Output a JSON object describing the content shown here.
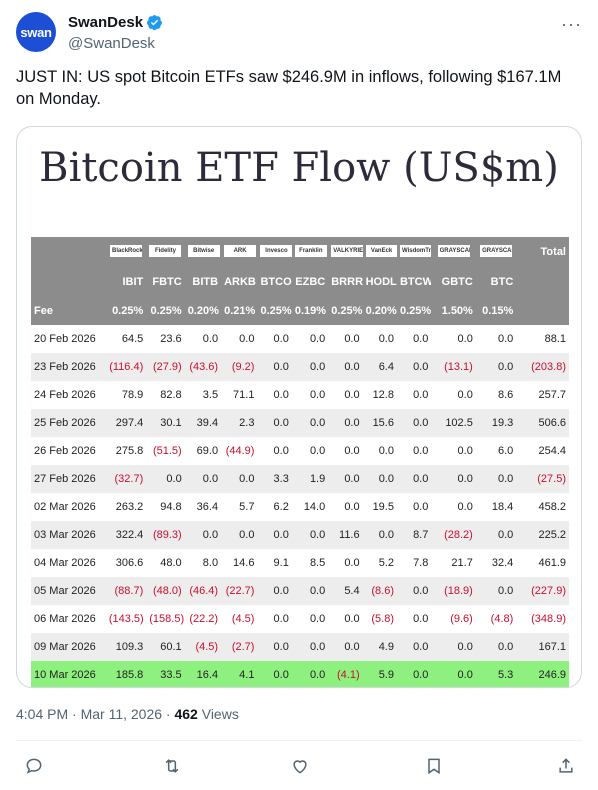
{
  "author": {
    "avatar_text": "swan",
    "display_name": "SwanDesk",
    "handle": "@SwanDesk",
    "verified_color": "#1d9bf0"
  },
  "more_label": "···",
  "tweet": {
    "text": "JUST IN: US spot Bitcoin ETFs saw $246.9M in inflows, following $167.1M on Monday."
  },
  "chart_data": {
    "type": "table",
    "title": "Bitcoin ETF Flow (US$m)",
    "issuers": [
      "BlackRock",
      "Fidelity",
      "Bitwise",
      "ARK",
      "Invesco",
      "Franklin",
      "VALKYRIE",
      "VanEck",
      "WisdomTree",
      "GRAYSCALE",
      "GRAYSCALE",
      "Total"
    ],
    "columns": [
      "IBIT",
      "FBTC",
      "BITB",
      "ARKB",
      "BTCO",
      "EZBC",
      "BRRR",
      "HODL",
      "BTCW",
      "GBTC",
      "BTC"
    ],
    "total_label": "Total",
    "fee_label": "Fee",
    "fees": [
      "0.25%",
      "0.25%",
      "0.20%",
      "0.21%",
      "0.25%",
      "0.19%",
      "0.25%",
      "0.20%",
      "0.25%",
      "1.50%",
      "0.15%",
      ""
    ],
    "rows": [
      {
        "date": "20 Feb 2026",
        "values": [
          "64.5",
          "23.6",
          "0.0",
          "0.0",
          "0.0",
          "0.0",
          "0.0",
          "0.0",
          "0.0",
          "0.0",
          "0.0",
          "88.1"
        ]
      },
      {
        "date": "23 Feb 2026",
        "values": [
          "(116.4)",
          "(27.9)",
          "(43.6)",
          "(9.2)",
          "0.0",
          "0.0",
          "0.0",
          "6.4",
          "0.0",
          "(13.1)",
          "0.0",
          "(203.8)"
        ]
      },
      {
        "date": "24 Feb 2026",
        "values": [
          "78.9",
          "82.8",
          "3.5",
          "71.1",
          "0.0",
          "0.0",
          "0.0",
          "12.8",
          "0.0",
          "0.0",
          "8.6",
          "257.7"
        ]
      },
      {
        "date": "25 Feb 2026",
        "values": [
          "297.4",
          "30.1",
          "39.4",
          "2.3",
          "0.0",
          "0.0",
          "0.0",
          "15.6",
          "0.0",
          "102.5",
          "19.3",
          "506.6"
        ]
      },
      {
        "date": "26 Feb 2026",
        "values": [
          "275.8",
          "(51.5)",
          "69.0",
          "(44.9)",
          "0.0",
          "0.0",
          "0.0",
          "0.0",
          "0.0",
          "0.0",
          "6.0",
          "254.4"
        ]
      },
      {
        "date": "27 Feb 2026",
        "values": [
          "(32.7)",
          "0.0",
          "0.0",
          "0.0",
          "3.3",
          "1.9",
          "0.0",
          "0.0",
          "0.0",
          "0.0",
          "0.0",
          "(27.5)"
        ]
      },
      {
        "date": "02 Mar 2026",
        "values": [
          "263.2",
          "94.8",
          "36.4",
          "5.7",
          "6.2",
          "14.0",
          "0.0",
          "19.5",
          "0.0",
          "0.0",
          "18.4",
          "458.2"
        ]
      },
      {
        "date": "03 Mar 2026",
        "values": [
          "322.4",
          "(89.3)",
          "0.0",
          "0.0",
          "0.0",
          "0.0",
          "11.6",
          "0.0",
          "8.7",
          "(28.2)",
          "0.0",
          "225.2"
        ]
      },
      {
        "date": "04 Mar 2026",
        "values": [
          "306.6",
          "48.0",
          "8.0",
          "14.6",
          "9.1",
          "8.5",
          "0.0",
          "5.2",
          "7.8",
          "21.7",
          "32.4",
          "461.9"
        ]
      },
      {
        "date": "05 Mar 2026",
        "values": [
          "(88.7)",
          "(48.0)",
          "(46.4)",
          "(22.7)",
          "0.0",
          "0.0",
          "5.4",
          "(8.6)",
          "0.0",
          "(18.9)",
          "0.0",
          "(227.9)"
        ]
      },
      {
        "date": "06 Mar 2026",
        "values": [
          "(143.5)",
          "(158.5)",
          "(22.2)",
          "(4.5)",
          "0.0",
          "0.0",
          "0.0",
          "(5.8)",
          "0.0",
          "(9.6)",
          "(4.8)",
          "(348.9)"
        ]
      },
      {
        "date": "09 Mar 2026",
        "values": [
          "109.3",
          "60.1",
          "(4.5)",
          "(2.7)",
          "0.0",
          "0.0",
          "0.0",
          "4.9",
          "0.0",
          "0.0",
          "0.0",
          "167.1"
        ]
      },
      {
        "date": "10 Mar 2026",
        "values": [
          "185.8",
          "33.5",
          "16.4",
          "4.1",
          "0.0",
          "0.0",
          "(4.1)",
          "5.9",
          "0.0",
          "0.0",
          "5.3",
          "246.9"
        ],
        "highlighted": true
      }
    ],
    "colors": {
      "header_bg": "#8c8c8c",
      "negative": "#c8102e",
      "highlight": "#8ef07f",
      "stripe": "#ededed"
    }
  },
  "meta": {
    "time": "4:04 PM · Mar 11, 2026 · ",
    "views_count": "462",
    "views_label": " Views"
  },
  "actions": {
    "icons": [
      "reply-icon",
      "retweet-icon",
      "like-icon",
      "bookmark-icon",
      "share-icon"
    ]
  }
}
